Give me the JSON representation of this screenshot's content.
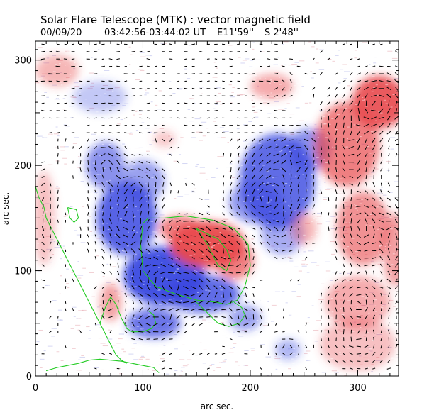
{
  "chart_data": {
    "type": "heatmap",
    "title": "Solar Flare Telescope (MTK) : vector magnetic field",
    "subtitle": {
      "date": "00/09/20",
      "time_range": "03:42:56-03:44:02 UT",
      "position_ew": "E11'59''",
      "position_ns": "S 2'48''"
    },
    "xlabel": "arc sec.",
    "ylabel": "arc sec.",
    "xlim": [
      0,
      338
    ],
    "ylim": [
      0,
      318
    ],
    "xticks": [
      0,
      100,
      200,
      300
    ],
    "yticks": [
      0,
      100,
      200,
      300
    ],
    "colors": {
      "positive_polarity": "#e8484c",
      "negative_polarity": "#3a48e0",
      "neutral_line": "#22cc22",
      "background": "#ffffff"
    },
    "regions": [
      {
        "polarity": "negative",
        "cx": 120,
        "cy": 95,
        "rx": 38,
        "ry": 28,
        "s": 0.95
      },
      {
        "polarity": "negative",
        "cx": 85,
        "cy": 150,
        "rx": 28,
        "ry": 35,
        "s": 0.85
      },
      {
        "polarity": "negative",
        "cx": 65,
        "cy": 200,
        "rx": 18,
        "ry": 22,
        "s": 0.6
      },
      {
        "polarity": "negative",
        "cx": 155,
        "cy": 78,
        "rx": 35,
        "ry": 18,
        "s": 0.8
      },
      {
        "polarity": "negative",
        "cx": 110,
        "cy": 50,
        "rx": 25,
        "ry": 14,
        "s": 0.75
      },
      {
        "polarity": "negative",
        "cx": 100,
        "cy": 185,
        "rx": 20,
        "ry": 20,
        "s": 0.5
      },
      {
        "polarity": "negative",
        "cx": 225,
        "cy": 185,
        "rx": 35,
        "ry": 45,
        "s": 0.8
      },
      {
        "polarity": "negative",
        "cx": 255,
        "cy": 215,
        "rx": 20,
        "ry": 20,
        "s": 0.6
      },
      {
        "polarity": "negative",
        "cx": 205,
        "cy": 165,
        "rx": 25,
        "ry": 20,
        "s": 0.55
      },
      {
        "polarity": "negative",
        "cx": 230,
        "cy": 135,
        "rx": 20,
        "ry": 20,
        "s": 0.45
      },
      {
        "polarity": "negative",
        "cx": 60,
        "cy": 265,
        "rx": 25,
        "ry": 15,
        "s": 0.3
      },
      {
        "polarity": "negative",
        "cx": 195,
        "cy": 55,
        "rx": 15,
        "ry": 12,
        "s": 0.5
      },
      {
        "polarity": "negative",
        "cx": 235,
        "cy": 25,
        "rx": 12,
        "ry": 10,
        "s": 0.4
      },
      {
        "polarity": "positive",
        "cx": 160,
        "cy": 125,
        "rx": 35,
        "ry": 22,
        "s": 0.95
      },
      {
        "polarity": "positive",
        "cx": 135,
        "cy": 140,
        "rx": 20,
        "ry": 12,
        "s": 0.7
      },
      {
        "polarity": "positive",
        "cx": 185,
        "cy": 110,
        "rx": 18,
        "ry": 18,
        "s": 0.7
      },
      {
        "polarity": "positive",
        "cx": 290,
        "cy": 220,
        "rx": 30,
        "ry": 40,
        "s": 0.7
      },
      {
        "polarity": "positive",
        "cx": 320,
        "cy": 260,
        "rx": 25,
        "ry": 25,
        "s": 0.9
      },
      {
        "polarity": "positive",
        "cx": 305,
        "cy": 140,
        "rx": 25,
        "ry": 35,
        "s": 0.6
      },
      {
        "polarity": "positive",
        "cx": 335,
        "cy": 120,
        "rx": 12,
        "ry": 35,
        "s": 0.5
      },
      {
        "polarity": "positive",
        "cx": 300,
        "cy": 70,
        "rx": 30,
        "ry": 25,
        "s": 0.45
      },
      {
        "polarity": "positive",
        "cx": 20,
        "cy": 290,
        "rx": 20,
        "ry": 15,
        "s": 0.4
      },
      {
        "polarity": "positive",
        "cx": 220,
        "cy": 275,
        "rx": 20,
        "ry": 12,
        "s": 0.45
      },
      {
        "polarity": "positive",
        "cx": 8,
        "cy": 150,
        "rx": 10,
        "ry": 45,
        "s": 0.35
      },
      {
        "polarity": "positive",
        "cx": 70,
        "cy": 70,
        "rx": 10,
        "ry": 18,
        "s": 0.5
      },
      {
        "polarity": "positive",
        "cx": 300,
        "cy": 30,
        "rx": 35,
        "ry": 25,
        "s": 0.35
      },
      {
        "polarity": "positive",
        "cx": 250,
        "cy": 140,
        "rx": 12,
        "ry": 15,
        "s": 0.4
      },
      {
        "polarity": "positive",
        "cx": 120,
        "cy": 225,
        "rx": 10,
        "ry": 8,
        "s": 0.3
      }
    ],
    "neutral_lines": [
      [
        [
          100,
          145
        ],
        [
          98,
          125
        ],
        [
          100,
          100
        ],
        [
          112,
          85
        ],
        [
          130,
          78
        ],
        [
          150,
          72
        ],
        [
          168,
          70
        ],
        [
          178,
          68
        ],
        [
          188,
          72
        ],
        [
          195,
          85
        ],
        [
          200,
          105
        ],
        [
          198,
          125
        ],
        [
          185,
          140
        ],
        [
          165,
          148
        ],
        [
          140,
          152
        ],
        [
          120,
          150
        ],
        [
          105,
          150
        ],
        [
          100,
          145
        ]
      ],
      [
        [
          150,
          140
        ],
        [
          160,
          135
        ],
        [
          170,
          130
        ],
        [
          178,
          120
        ],
        [
          182,
          110
        ],
        [
          178,
          100
        ],
        [
          170,
          105
        ],
        [
          165,
          115
        ],
        [
          160,
          125
        ],
        [
          150,
          140
        ]
      ],
      [
        [
          0,
          180
        ],
        [
          3,
          170
        ],
        [
          8,
          160
        ],
        [
          10,
          150
        ],
        [
          15,
          140
        ],
        [
          20,
          130
        ],
        [
          25,
          120
        ],
        [
          30,
          110
        ],
        [
          35,
          100
        ],
        [
          40,
          90
        ],
        [
          45,
          80
        ],
        [
          50,
          70
        ],
        [
          55,
          60
        ],
        [
          60,
          50
        ],
        [
          65,
          40
        ],
        [
          70,
          30
        ],
        [
          75,
          20
        ],
        [
          80,
          15
        ],
        [
          85,
          12
        ]
      ],
      [
        [
          60,
          50
        ],
        [
          65,
          65
        ],
        [
          70,
          75
        ],
        [
          75,
          68
        ],
        [
          80,
          55
        ],
        [
          85,
          45
        ],
        [
          90,
          42
        ],
        [
          100,
          42
        ],
        [
          108,
          45
        ],
        [
          112,
          50
        ],
        [
          110,
          58
        ],
        [
          105,
          62
        ]
      ],
      [
        [
          150,
          70
        ],
        [
          160,
          60
        ],
        [
          170,
          50
        ],
        [
          180,
          47
        ],
        [
          190,
          50
        ],
        [
          195,
          58
        ],
        [
          192,
          65
        ],
        [
          185,
          70
        ]
      ],
      [
        [
          10,
          5
        ],
        [
          20,
          8
        ],
        [
          30,
          10
        ],
        [
          40,
          12
        ],
        [
          50,
          15
        ],
        [
          60,
          16
        ],
        [
          70,
          15
        ],
        [
          80,
          14
        ],
        [
          90,
          12
        ],
        [
          100,
          10
        ],
        [
          110,
          8
        ],
        [
          115,
          3
        ]
      ],
      [
        [
          30,
          160
        ],
        [
          32,
          150
        ],
        [
          36,
          146
        ],
        [
          40,
          150
        ],
        [
          38,
          158
        ],
        [
          30,
          160
        ]
      ]
    ],
    "vectors": {
      "spacing": 7,
      "description": "transverse field azimuth line segments"
    }
  }
}
